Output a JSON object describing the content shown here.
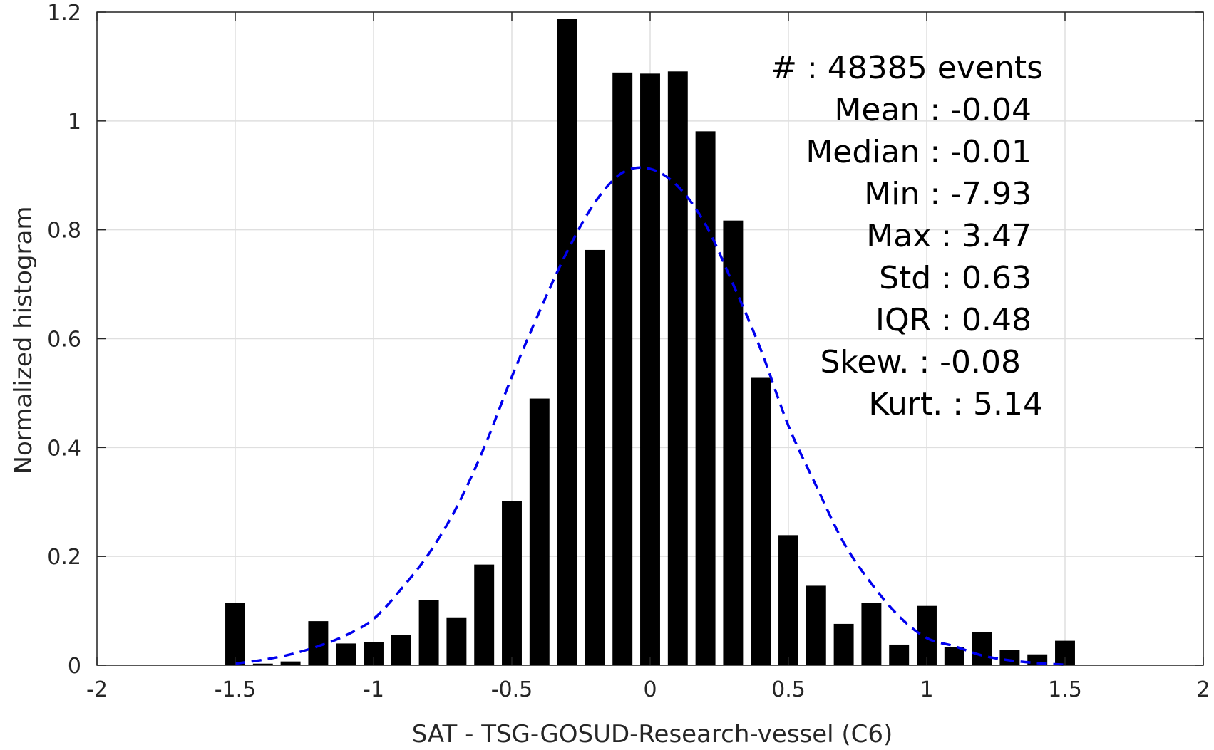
{
  "chart_data": {
    "type": "bar",
    "xlabel": "SAT - TSG-GOSUD-Research-vessel (C6)",
    "ylabel": "Normalized histogram",
    "xlim": [
      -2,
      2
    ],
    "ylim": [
      0,
      1.2
    ],
    "xticks": [
      -2,
      -1.5,
      -1,
      -0.5,
      0,
      0.5,
      1,
      1.5,
      2
    ],
    "xtick_labels": [
      "-2",
      "-1.5",
      "-1",
      "-0.5",
      "0",
      "0.5",
      "1",
      "1.5",
      "2"
    ],
    "yticks": [
      0,
      0.2,
      0.4,
      0.6,
      0.8,
      1,
      1.2
    ],
    "ytick_labels": [
      "0",
      "0.2",
      "0.4",
      "0.6",
      "0.8",
      "1",
      "1.2"
    ],
    "grid": true,
    "bar_color": "#000000",
    "bin_width": 0.1,
    "bars": {
      "x": [
        -1.5,
        -1.4,
        -1.3,
        -1.2,
        -1.1,
        -1.0,
        -0.9,
        -0.8,
        -0.7,
        -0.6,
        -0.5,
        -0.4,
        -0.3,
        -0.2,
        -0.1,
        0.0,
        0.1,
        0.2,
        0.3,
        0.4,
        0.5,
        0.6,
        0.7,
        0.8,
        0.9,
        1.0,
        1.1,
        1.2,
        1.3,
        1.4,
        1.5
      ],
      "values": [
        0.114,
        0.003,
        0.007,
        0.081,
        0.04,
        0.043,
        0.055,
        0.12,
        0.088,
        0.185,
        0.302,
        0.49,
        1.188,
        0.763,
        1.089,
        1.087,
        1.091,
        0.981,
        0.817,
        0.528,
        0.239,
        0.146,
        0.076,
        0.115,
        0.038,
        0.109,
        0.033,
        0.061,
        0.028,
        0.02,
        0.045
      ]
    },
    "fit_curve": {
      "style": "dashed",
      "color": "#0000ee",
      "x": [
        -1.5,
        -1.4,
        -1.3,
        -1.2,
        -1.1,
        -1.0,
        -0.9,
        -0.8,
        -0.7,
        -0.6,
        -0.5,
        -0.4,
        -0.3,
        -0.2,
        -0.1,
        0.0,
        0.1,
        0.2,
        0.3,
        0.4,
        0.5,
        0.6,
        0.7,
        0.8,
        0.9,
        1.0,
        1.1,
        1.2,
        1.3,
        1.4,
        1.5
      ],
      "values": [
        0.003,
        0.01,
        0.02,
        0.035,
        0.055,
        0.085,
        0.14,
        0.205,
        0.29,
        0.4,
        0.53,
        0.65,
        0.76,
        0.85,
        0.905,
        0.912,
        0.88,
        0.81,
        0.7,
        0.58,
        0.44,
        0.33,
        0.225,
        0.15,
        0.09,
        0.05,
        0.035,
        0.018,
        0.009,
        0.004,
        0.001
      ]
    },
    "annotations": [
      "#  : 48385 events",
      "Mean : -0.04",
      "Median : -0.01",
      "Min : -7.93",
      "Max : 3.47",
      "Std : 0.63",
      "IQR : 0.48",
      "Skew. : -0.08",
      "Kurt. : 5.14"
    ]
  }
}
